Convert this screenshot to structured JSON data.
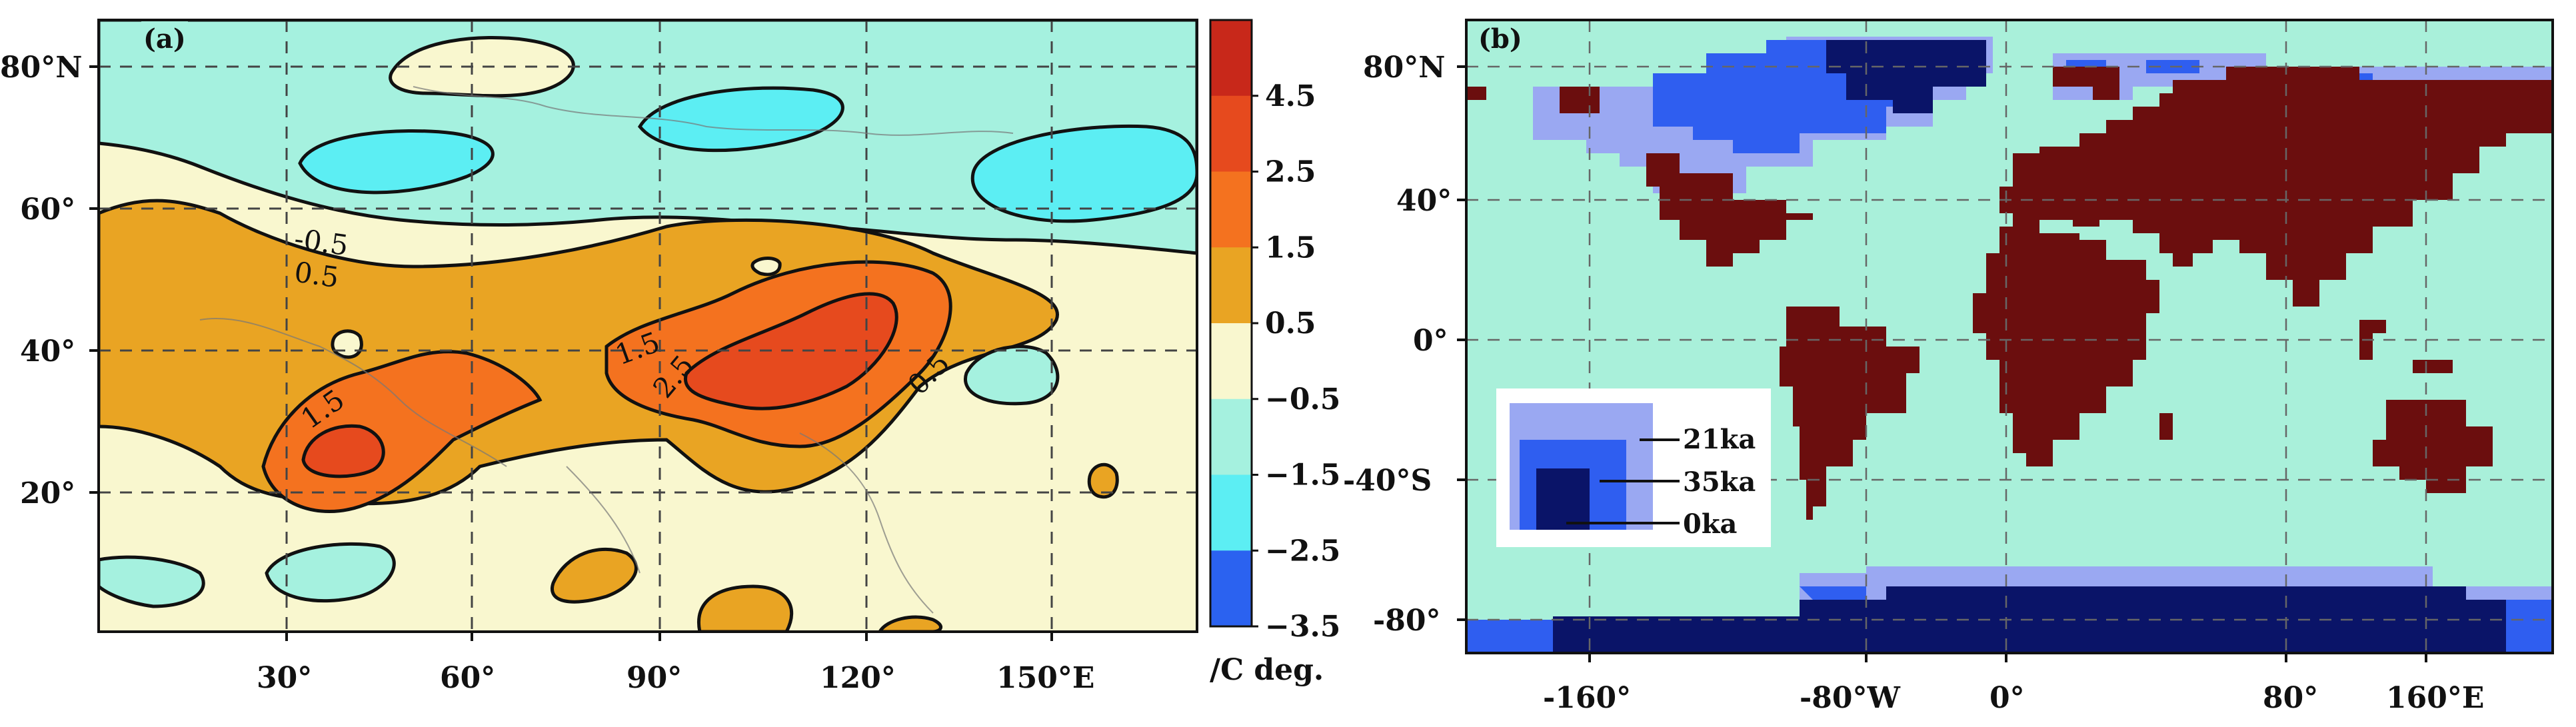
{
  "panel_a": {
    "letter": "(a)",
    "y_ticks": [
      "80°N",
      "60°",
      "40°",
      "20°"
    ],
    "x_ticks": [
      "30°",
      "60°",
      "90°",
      "120°",
      "150°E"
    ],
    "contour_labels": [
      "-0.5",
      "0.5",
      "1.5",
      "1.5",
      "2.5",
      "0.5"
    ],
    "colorbar": {
      "ticks": [
        "4.5",
        "2.5",
        "1.5",
        "0.5",
        "−0.5",
        "−1.5",
        "−2.5",
        "−3.5"
      ],
      "unit": "/C deg.",
      "colors": [
        "#c8281a",
        "#e64a1e",
        "#f4721f",
        "#e9a423",
        "#f9f7cf",
        "#a5f1df",
        "#5ceef3",
        "#2b62f0"
      ]
    }
  },
  "panel_b": {
    "letter": "(b)",
    "y_ticks": [
      "80°N",
      "40°",
      "0°",
      "-40°S",
      "-80°"
    ],
    "x_ticks": [
      "-160°",
      "-80°W",
      "0°",
      "80°",
      "160°E"
    ],
    "legend": [
      "21ka",
      "35ka",
      "0ka"
    ],
    "colors": {
      "ocean": "#a9f0da",
      "land": "#6b0e0e",
      "ice_21ka": "#9aa8f2",
      "ice_35ka": "#2f5ef0",
      "ice_0ka": "#0a1468"
    }
  }
}
